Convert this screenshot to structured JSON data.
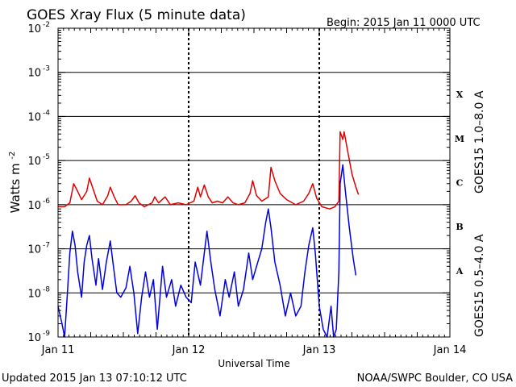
{
  "chart_data": {
    "type": "line",
    "title": "GOES Xray Flux (5 minute data)",
    "begin_label": "Begin:  2015 Jan 11 0000 UTC",
    "xlabel": "Universal Time",
    "ylabel": "Watts m",
    "ylabel_exponent": "-2",
    "y_scale": "log",
    "ylim": [
      1e-09,
      0.01
    ],
    "x_units": "days since 2015 Jan 11 00:00 UTC",
    "xlim": [
      0,
      3
    ],
    "x_ticks": [
      {
        "v": 0,
        "label": "Jan 11"
      },
      {
        "v": 1,
        "label": "Jan 12"
      },
      {
        "v": 2,
        "label": "Jan 13"
      },
      {
        "v": 3,
        "label": "Jan 14"
      }
    ],
    "y_ticks": [
      {
        "exp": -2,
        "base": "10",
        "sup": "-2"
      },
      {
        "exp": -3,
        "base": "10",
        "sup": "-3"
      },
      {
        "exp": -4,
        "base": "10",
        "sup": "-4"
      },
      {
        "exp": -5,
        "base": "10",
        "sup": "-5"
      },
      {
        "exp": -6,
        "base": "10",
        "sup": "-6"
      },
      {
        "exp": -7,
        "base": "10",
        "sup": "-7"
      },
      {
        "exp": -8,
        "base": "10",
        "sup": "-8"
      },
      {
        "exp": -9,
        "base": "10",
        "sup": "-9"
      }
    ],
    "flare_classes": [
      {
        "label": "X",
        "exp": -3.5
      },
      {
        "label": "M",
        "exp": -4.5
      },
      {
        "label": "C",
        "exp": -5.5
      },
      {
        "label": "B",
        "exp": -6.5
      },
      {
        "label": "A",
        "exp": -7.5
      }
    ],
    "grid": true,
    "series": [
      {
        "name": "GOES15 1.0–8.0 A",
        "color": "#e00000",
        "points": [
          [
            0.0,
            9e-07
          ],
          [
            0.05,
            9e-07
          ],
          [
            0.09,
            1.1e-06
          ],
          [
            0.12,
            3e-06
          ],
          [
            0.15,
            2e-06
          ],
          [
            0.18,
            1.3e-06
          ],
          [
            0.22,
            2e-06
          ],
          [
            0.24,
            4e-06
          ],
          [
            0.27,
            2.2e-06
          ],
          [
            0.3,
            1.2e-06
          ],
          [
            0.34,
            1e-06
          ],
          [
            0.38,
            1.6e-06
          ],
          [
            0.4,
            2.5e-06
          ],
          [
            0.43,
            1.5e-06
          ],
          [
            0.46,
            1e-06
          ],
          [
            0.52,
            1e-06
          ],
          [
            0.56,
            1.2e-06
          ],
          [
            0.59,
            1.6e-06
          ],
          [
            0.62,
            1.1e-06
          ],
          [
            0.66,
            9e-07
          ],
          [
            0.72,
            1.1e-06
          ],
          [
            0.74,
            1.5e-06
          ],
          [
            0.77,
            1.1e-06
          ],
          [
            0.82,
            1.5e-06
          ],
          [
            0.86,
            1e-06
          ],
          [
            0.92,
            1.1e-06
          ],
          [
            0.98,
            1e-06
          ],
          [
            1.04,
            1.2e-06
          ],
          [
            1.07,
            2.5e-06
          ],
          [
            1.09,
            1.5e-06
          ],
          [
            1.12,
            2.8e-06
          ],
          [
            1.15,
            1.5e-06
          ],
          [
            1.18,
            1.1e-06
          ],
          [
            1.22,
            1.2e-06
          ],
          [
            1.26,
            1.1e-06
          ],
          [
            1.3,
            1.5e-06
          ],
          [
            1.34,
            1.1e-06
          ],
          [
            1.38,
            1e-06
          ],
          [
            1.43,
            1.1e-06
          ],
          [
            1.47,
            1.8e-06
          ],
          [
            1.49,
            3.5e-06
          ],
          [
            1.52,
            1.6e-06
          ],
          [
            1.56,
            1.2e-06
          ],
          [
            1.61,
            1.5e-06
          ],
          [
            1.63,
            7e-06
          ],
          [
            1.66,
            3.5e-06
          ],
          [
            1.7,
            1.8e-06
          ],
          [
            1.75,
            1.3e-06
          ],
          [
            1.82,
            1e-06
          ],
          [
            1.88,
            1.2e-06
          ],
          [
            1.92,
            1.8e-06
          ],
          [
            1.95,
            3e-06
          ],
          [
            1.98,
            1.4e-06
          ],
          [
            2.02,
            9e-07
          ],
          [
            2.08,
            8e-07
          ],
          [
            2.12,
            9e-07
          ],
          [
            2.15,
            1.2e-06
          ],
          [
            2.16,
            4.5e-05
          ],
          [
            2.18,
            3e-05
          ],
          [
            2.19,
            4.5e-05
          ],
          [
            2.22,
            1.5e-05
          ],
          [
            2.25,
            5e-06
          ],
          [
            2.28,
            2.5e-06
          ],
          [
            2.3,
            1.7e-06
          ]
        ]
      },
      {
        "name": "GOES15 0.5–4.0 A",
        "color": "#0000e0",
        "points": [
          [
            0.0,
            5e-09
          ],
          [
            0.03,
            2e-09
          ],
          [
            0.05,
            1e-09
          ],
          [
            0.07,
            8e-09
          ],
          [
            0.09,
            8e-08
          ],
          [
            0.11,
            2.5e-07
          ],
          [
            0.13,
            1.2e-07
          ],
          [
            0.15,
            3e-08
          ],
          [
            0.18,
            8e-09
          ],
          [
            0.2,
            5e-08
          ],
          [
            0.22,
            1.2e-07
          ],
          [
            0.24,
            2e-07
          ],
          [
            0.26,
            6e-08
          ],
          [
            0.29,
            1.5e-08
          ],
          [
            0.31,
            6e-08
          ],
          [
            0.34,
            1.2e-08
          ],
          [
            0.37,
            5e-08
          ],
          [
            0.4,
            1.5e-07
          ],
          [
            0.42,
            5e-08
          ],
          [
            0.45,
            1e-08
          ],
          [
            0.48,
            8e-09
          ],
          [
            0.52,
            1.3e-08
          ],
          [
            0.55,
            4e-08
          ],
          [
            0.58,
            1e-08
          ],
          [
            0.61,
            1.2e-09
          ],
          [
            0.64,
            8e-09
          ],
          [
            0.67,
            3e-08
          ],
          [
            0.7,
            8e-09
          ],
          [
            0.73,
            2e-08
          ],
          [
            0.76,
            1.5e-09
          ],
          [
            0.8,
            4e-08
          ],
          [
            0.83,
            8e-09
          ],
          [
            0.87,
            2e-08
          ],
          [
            0.9,
            5e-09
          ],
          [
            0.94,
            1.5e-08
          ],
          [
            0.98,
            8e-09
          ],
          [
            1.02,
            6e-09
          ],
          [
            1.05,
            5e-08
          ],
          [
            1.09,
            1.5e-08
          ],
          [
            1.12,
            8e-08
          ],
          [
            1.14,
            2.5e-07
          ],
          [
            1.17,
            5e-08
          ],
          [
            1.2,
            1.2e-08
          ],
          [
            1.24,
            3e-09
          ],
          [
            1.28,
            2e-08
          ],
          [
            1.31,
            8e-09
          ],
          [
            1.35,
            3e-08
          ],
          [
            1.38,
            5e-09
          ],
          [
            1.42,
            1.2e-08
          ],
          [
            1.46,
            8e-08
          ],
          [
            1.49,
            2e-08
          ],
          [
            1.52,
            4e-08
          ],
          [
            1.56,
            1e-07
          ],
          [
            1.59,
            4e-07
          ],
          [
            1.61,
            8e-07
          ],
          [
            1.63,
            3e-07
          ],
          [
            1.66,
            5e-08
          ],
          [
            1.7,
            1.5e-08
          ],
          [
            1.74,
            3e-09
          ],
          [
            1.78,
            1e-08
          ],
          [
            1.82,
            3e-09
          ],
          [
            1.86,
            5e-09
          ],
          [
            1.89,
            3e-08
          ],
          [
            1.92,
            1.2e-07
          ],
          [
            1.95,
            3e-07
          ],
          [
            1.97,
            8e-08
          ],
          [
            2.0,
            5e-09
          ],
          [
            2.03,
            1.5e-09
          ],
          [
            2.06,
            1e-09
          ],
          [
            2.09,
            5e-09
          ],
          [
            2.11,
            1e-09
          ],
          [
            2.13,
            1.5e-09
          ],
          [
            2.15,
            3e-08
          ],
          [
            2.16,
            3e-06
          ],
          [
            2.18,
            8e-06
          ],
          [
            2.2,
            2e-06
          ],
          [
            2.23,
            3e-07
          ],
          [
            2.26,
            6e-08
          ],
          [
            2.28,
            2.5e-08
          ]
        ]
      }
    ]
  },
  "footer": {
    "updated": "Updated 2015 Jan 13 07:10:12 UTC",
    "source": "NOAA/SWPC Boulder, CO USA"
  }
}
